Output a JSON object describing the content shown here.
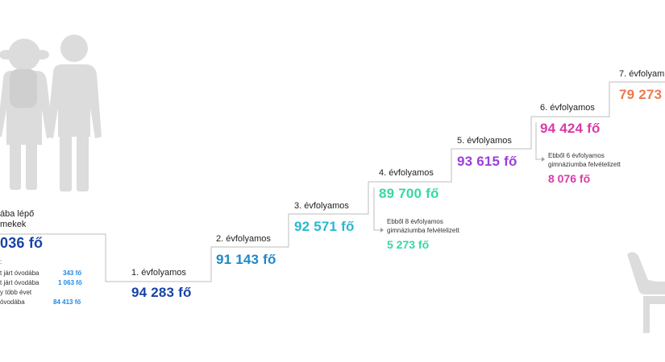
{
  "colors": {
    "navy": "#1743a3",
    "teal": "#28b8cc",
    "green": "#34d8a6",
    "purple": "#9b3fdb",
    "magenta": "#d93aa8",
    "orange": "#ec7a4e",
    "silhouette": "#dcdcdc",
    "line": "#bdbdbd"
  },
  "intro": {
    "title_line1": "ába lépő",
    "title_line2": "mekek",
    "count": " 036 fő",
    "breakdown_label": ":",
    "rows": [
      {
        "label": "t járt óvodába",
        "value": "343 fő"
      },
      {
        "label": "t járt óvodába",
        "value": "1 063 fő"
      },
      {
        "label": "y több évet",
        "value": ""
      },
      {
        "label": "óvodába",
        "value": "84 413 fő"
      }
    ]
  },
  "grades": [
    {
      "label": "1. évfolyamos",
      "count": "94 283 fő",
      "color": "#1743a3"
    },
    {
      "label": "2. évfolyamos",
      "count": "91 143 fő",
      "color": "#1e88c8"
    },
    {
      "label": "3. évfolyamos",
      "count": "92 571 fő",
      "color": "#28b8cc"
    },
    {
      "label": "4. évfolyamos",
      "count": "89 700 fő",
      "color": "#34d8a6"
    },
    {
      "label": "5. évfolyamos",
      "count": "93 615 fő",
      "color": "#9b3fdb"
    },
    {
      "label": "6. évfolyamos",
      "count": "94 424 fő",
      "color": "#d93aa8"
    },
    {
      "label": "7. évfolyam",
      "count": "79 273",
      "color": "#ec7a4e"
    }
  ],
  "notes": [
    {
      "line1": "Ebből 8 évfolyamos",
      "line2": "gimnáziumba felvételizett",
      "count": "5 273 fő",
      "color": "#34d8a6"
    },
    {
      "line1": "Ebből 6 évfolyamos",
      "line2": "gimnáziumba felvételizett",
      "count": "8 076 fő",
      "color": "#d93aa8"
    }
  ],
  "icons": [
    "children-silhouette-icon",
    "student-desk-silhouette-icon",
    "arrow-right-icon"
  ]
}
